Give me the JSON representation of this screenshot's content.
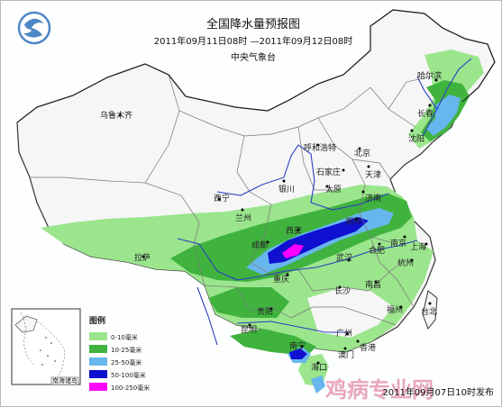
{
  "title": "全国降水量预报图",
  "period": "2011年09月11日08时 —2011年09月12日08时",
  "agency": "中央气象台",
  "issued": "2011年09月07日10时发布",
  "watermark": "鸡病专业网",
  "inset_label": "南海诸岛",
  "legend": {
    "title": "图例",
    "items": [
      {
        "label": "0-10毫米",
        "color": "#9be58d"
      },
      {
        "label": "10-25毫米",
        "color": "#3fb33e"
      },
      {
        "label": "25-50毫米",
        "color": "#67b6ee"
      },
      {
        "label": "50-100毫米",
        "color": "#1010d0"
      },
      {
        "label": "100-250毫米",
        "color": "#ff00ff"
      }
    ]
  },
  "cities": {
    "haerbin": "哈尔滨",
    "changchun": "长春",
    "shenyang": "沈阳",
    "wulumuqi": "乌鲁木齐",
    "huhehaote": "呼和浩特",
    "beijing": "北京",
    "tianjin": "天津",
    "shijiazhuang": "石家庄",
    "taiyuan": "太原",
    "yinchuan": "银川",
    "xining": "西宁",
    "lanzhou": "兰州",
    "jinan": "济南",
    "zhengzhou": "郑州",
    "xian": "西安",
    "chengdu": "成都",
    "hefei": "合肥",
    "nanjing": "南京",
    "shanghai": "上海",
    "wuhan": "武汉",
    "hangzhou": "杭州",
    "lasa": "拉萨",
    "chongqing": "重庆",
    "changsha": "长沙",
    "nanchang": "南昌",
    "fuzhou": "福州",
    "guiyang": "贵阳",
    "kunming": "昆明",
    "nanning": "南宁",
    "guangzhou": "广州",
    "taibei": "台北",
    "xianggang": "香港",
    "aomen": "澳门",
    "haikou": "海口"
  },
  "colors": {
    "land": "#f6f6f6",
    "outline": "#333333",
    "river": "#2a3fbf",
    "watermark": "#e9a7bf"
  }
}
